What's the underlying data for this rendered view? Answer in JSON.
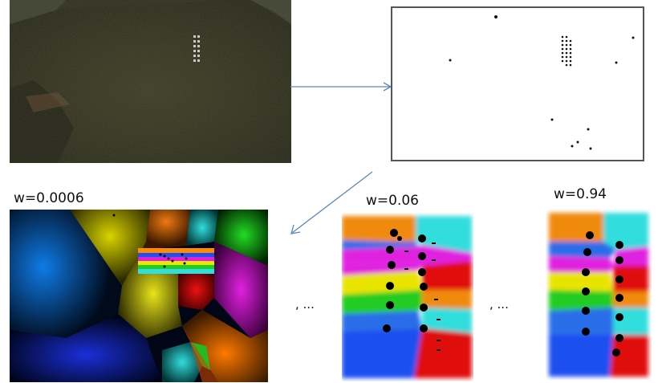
{
  "labels": {
    "w1": "w=0.0006",
    "w2": "w=0.06",
    "w3": "w=0.94",
    "ellipsis1": ", ...",
    "ellipsis2": ", ..."
  },
  "colors": {
    "arrow": "#5b86c0",
    "terrain": "#2f2f1d",
    "border": "#555555"
  }
}
